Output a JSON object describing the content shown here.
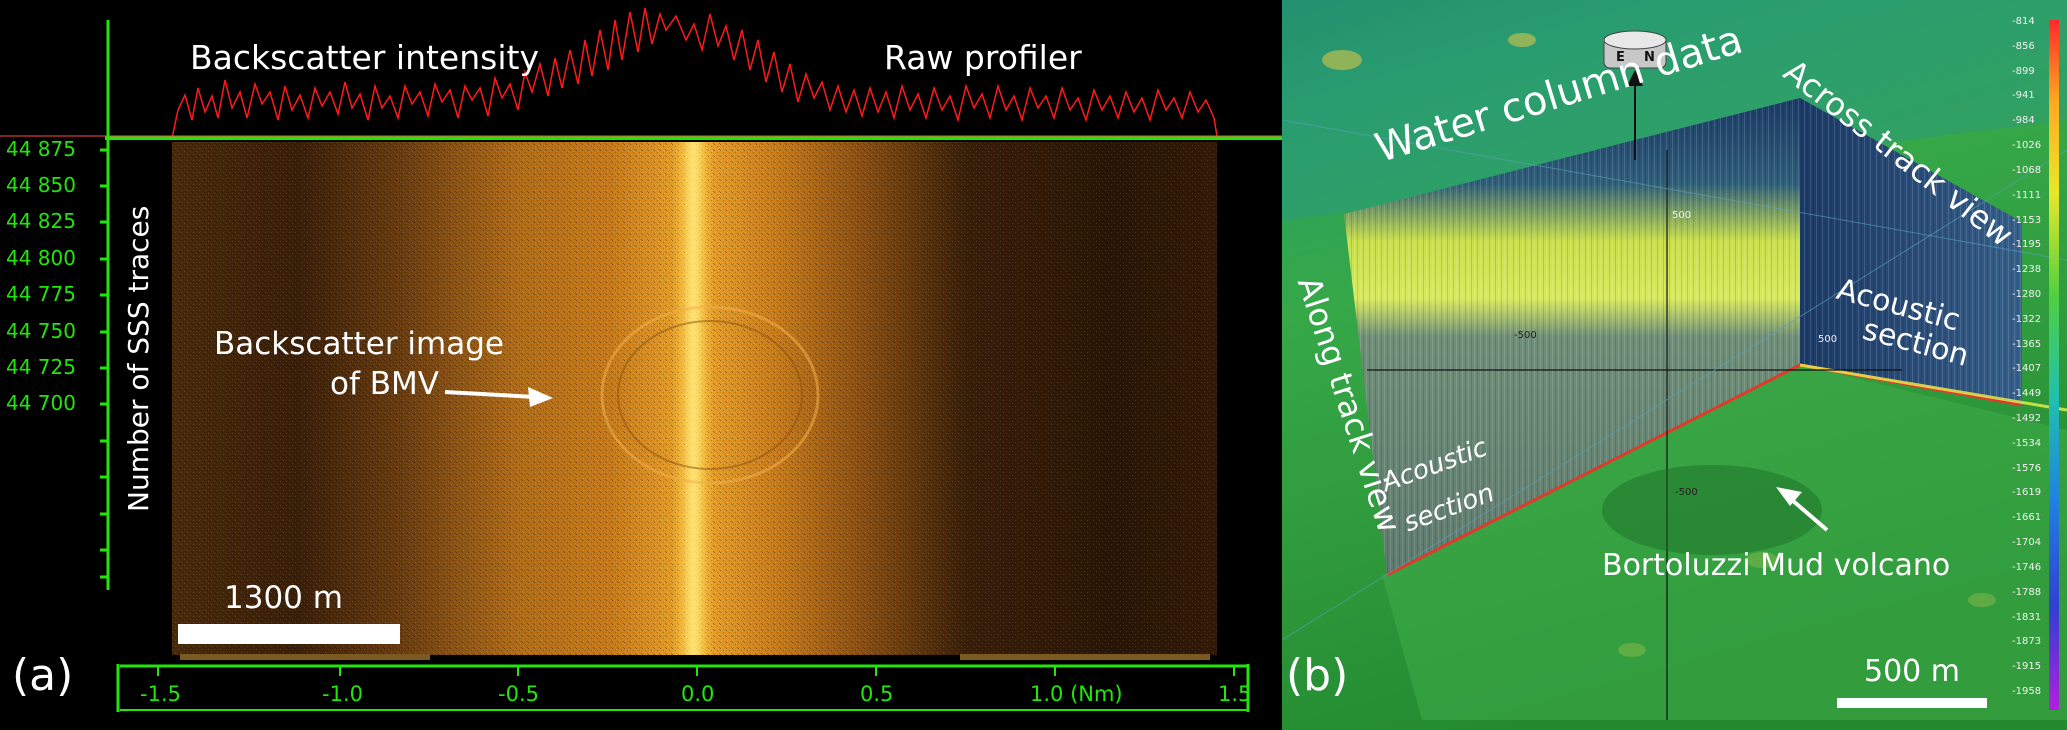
{
  "panel_a": {
    "panel_label": "(a)",
    "titles": {
      "left": "Backscatter intensity",
      "right": "Raw profiler"
    },
    "ylabel": "Number of SSS traces",
    "yticks": [
      "44 875",
      "44 850",
      "44 825",
      "44 800",
      "44 775",
      "44 750",
      "44 725",
      "44 700"
    ],
    "xticks": [
      "-1.5",
      "-1.0",
      "-0.5",
      "0.0",
      "0.5",
      "1.0 (Nm)",
      "1.5"
    ],
    "annotation_line1": "Backscatter image",
    "annotation_line2": "of BMV",
    "scalebar": "1300 m",
    "colors": {
      "axis": "#22e60a",
      "profile": "#ff1a1a",
      "backscatter": "#c77a1a"
    }
  },
  "panel_b": {
    "panel_label": "(b)",
    "labels": {
      "water_column": "Water column data",
      "across_track": "Across track view",
      "along_track": "Along track view",
      "acoustic_section_right_1": "Acoustic",
      "acoustic_section_right_2": "section",
      "acoustic_section_left_1": "Acoustic",
      "acoustic_section_left_2": "section",
      "mud_volcano": "Bortoluzzi Mud volcano"
    },
    "compass": {
      "e": "E",
      "n": "N"
    },
    "grid_labels": {
      "g500_top": "500",
      "g500_left": "-500",
      "g500_right": "500",
      "g500_bottom": "-500"
    },
    "colorbar_ticks": [
      "-814",
      "-856",
      "-899",
      "-941",
      "-984",
      "-1026",
      "-1068",
      "-1111",
      "-1153",
      "-1195",
      "-1238",
      "-1280",
      "-1322",
      "-1365",
      "-1407",
      "-1449",
      "-1492",
      "-1534",
      "-1576",
      "-1619",
      "-1661",
      "-1704",
      "-1746",
      "-1788",
      "-1831",
      "-1873",
      "-1915",
      "-1958"
    ],
    "scalebar": "500 m"
  }
}
